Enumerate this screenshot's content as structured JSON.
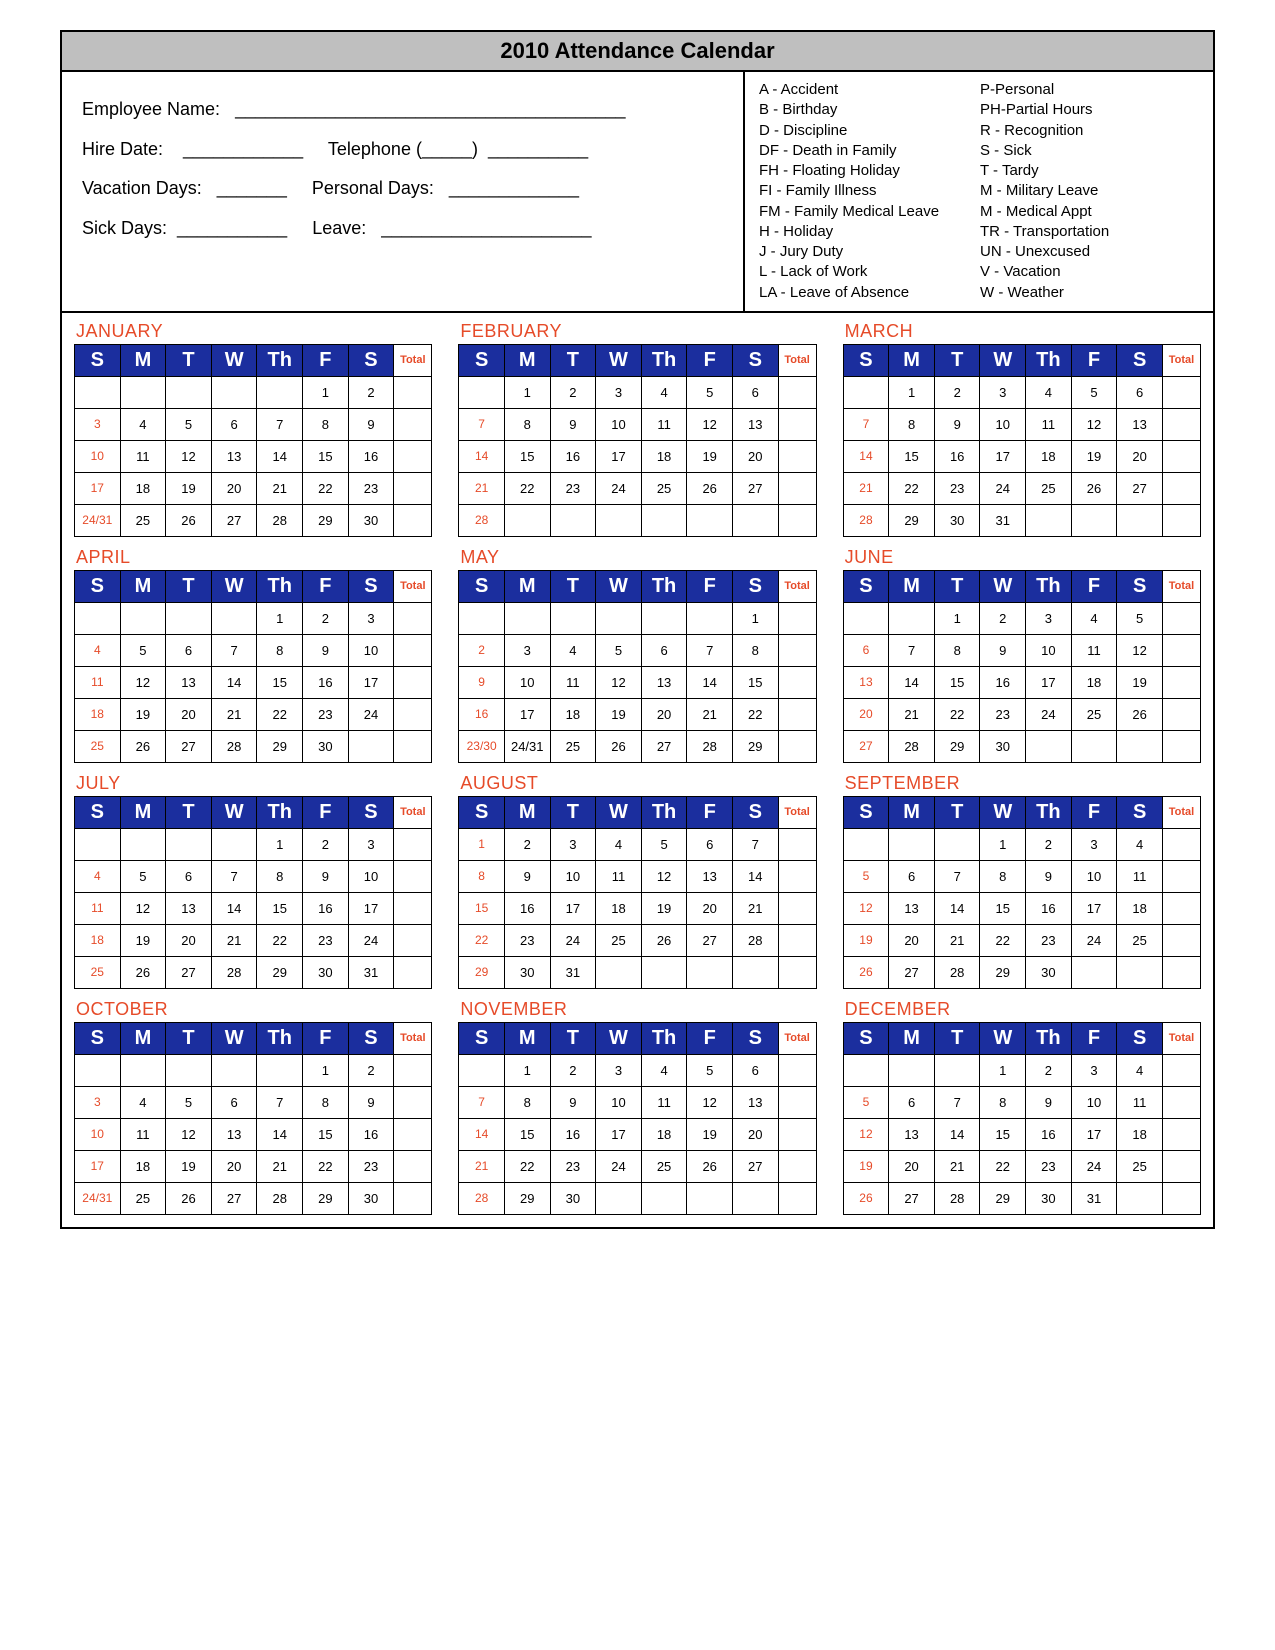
{
  "title": "2010 Attendance Calendar",
  "employee_info": {
    "name_label": "Employee Name:",
    "name_line": "_______________________________________",
    "hire_label": "Hire Date:",
    "hire_line": "____________",
    "tel_label": "Telephone (_____)",
    "tel_line": "__________",
    "vac_label": "Vacation Days:",
    "vac_line": "_______",
    "pers_label": "Personal Days:",
    "pers_line": "_____________",
    "sick_label": "Sick Days:",
    "sick_line": "___________",
    "leave_label": "Leave:",
    "leave_line": "_____________________"
  },
  "legend": {
    "col1": [
      "A - Accident",
      "B -  Birthday",
      "D - Discipline",
      "DF - Death in Family",
      "FH - Floating Holiday",
      "FI - Family Illness",
      "FM - Family Medical Leave",
      "H - Holiday",
      "J - Jury Duty",
      "L - Lack of Work",
      "LA - Leave of Absence"
    ],
    "col2": [
      "P-Personal",
      "PH-Partial Hours",
      "R - Recognition",
      "S - Sick",
      "T - Tardy",
      "M - Military Leave",
      "M - Medical Appt",
      "TR - Transportation",
      "UN - Unexcused",
      "V - Vacation",
      "W - Weather"
    ]
  },
  "day_headers": [
    "S",
    "M",
    "T",
    "W",
    "Th",
    "F",
    "S"
  ],
  "total_header": "Total",
  "colors": {
    "header_bg": "#1b2e9e",
    "header_fg": "#ffffff",
    "accent": "#e64b29",
    "title_bg": "#bfbfbf",
    "border": "#000000"
  },
  "months": [
    {
      "name": "JANUARY",
      "weeks": [
        [
          "",
          "",
          "",
          "",
          "",
          "1",
          "2"
        ],
        [
          "3",
          "4",
          "5",
          "6",
          "7",
          "8",
          "9"
        ],
        [
          "10",
          "11",
          "12",
          "13",
          "14",
          "15",
          "16"
        ],
        [
          "17",
          "18",
          "19",
          "20",
          "21",
          "22",
          "23"
        ],
        [
          "24/31",
          "25",
          "26",
          "27",
          "28",
          "29",
          "30"
        ]
      ]
    },
    {
      "name": "FEBRUARY",
      "weeks": [
        [
          "",
          "1",
          "2",
          "3",
          "4",
          "5",
          "6"
        ],
        [
          "7",
          "8",
          "9",
          "10",
          "11",
          "12",
          "13"
        ],
        [
          "14",
          "15",
          "16",
          "17",
          "18",
          "19",
          "20"
        ],
        [
          "21",
          "22",
          "23",
          "24",
          "25",
          "26",
          "27"
        ],
        [
          "28",
          "",
          "",
          "",
          "",
          "",
          ""
        ]
      ]
    },
    {
      "name": "MARCH",
      "weeks": [
        [
          "",
          "1",
          "2",
          "3",
          "4",
          "5",
          "6"
        ],
        [
          "7",
          "8",
          "9",
          "10",
          "11",
          "12",
          "13"
        ],
        [
          "14",
          "15",
          "16",
          "17",
          "18",
          "19",
          "20"
        ],
        [
          "21",
          "22",
          "23",
          "24",
          "25",
          "26",
          "27"
        ],
        [
          "28",
          "29",
          "30",
          "31",
          "",
          "",
          ""
        ]
      ]
    },
    {
      "name": "APRIL",
      "weeks": [
        [
          "",
          "",
          "",
          "",
          "1",
          "2",
          "3"
        ],
        [
          "4",
          "5",
          "6",
          "7",
          "8",
          "9",
          "10"
        ],
        [
          "11",
          "12",
          "13",
          "14",
          "15",
          "16",
          "17"
        ],
        [
          "18",
          "19",
          "20",
          "21",
          "22",
          "23",
          "24"
        ],
        [
          "25",
          "26",
          "27",
          "28",
          "29",
          "30",
          ""
        ]
      ]
    },
    {
      "name": "MAY",
      "weeks": [
        [
          "",
          "",
          "",
          "",
          "",
          "",
          "1"
        ],
        [
          "2",
          "3",
          "4",
          "5",
          "6",
          "7",
          "8"
        ],
        [
          "9",
          "10",
          "11",
          "12",
          "13",
          "14",
          "15"
        ],
        [
          "16",
          "17",
          "18",
          "19",
          "20",
          "21",
          "22"
        ],
        [
          "23/30",
          "24/31",
          "25",
          "26",
          "27",
          "28",
          "29"
        ]
      ]
    },
    {
      "name": "JUNE",
      "weeks": [
        [
          "",
          "",
          "1",
          "2",
          "3",
          "4",
          "5"
        ],
        [
          "6",
          "7",
          "8",
          "9",
          "10",
          "11",
          "12"
        ],
        [
          "13",
          "14",
          "15",
          "16",
          "17",
          "18",
          "19"
        ],
        [
          "20",
          "21",
          "22",
          "23",
          "24",
          "25",
          "26"
        ],
        [
          "27",
          "28",
          "29",
          "30",
          "",
          "",
          ""
        ]
      ]
    },
    {
      "name": "JULY",
      "weeks": [
        [
          "",
          "",
          "",
          "",
          "1",
          "2",
          "3"
        ],
        [
          "4",
          "5",
          "6",
          "7",
          "8",
          "9",
          "10"
        ],
        [
          "11",
          "12",
          "13",
          "14",
          "15",
          "16",
          "17"
        ],
        [
          "18",
          "19",
          "20",
          "21",
          "22",
          "23",
          "24"
        ],
        [
          "25",
          "26",
          "27",
          "28",
          "29",
          "30",
          "31"
        ]
      ]
    },
    {
      "name": "AUGUST",
      "weeks": [
        [
          "1",
          "2",
          "3",
          "4",
          "5",
          "6",
          "7"
        ],
        [
          "8",
          "9",
          "10",
          "11",
          "12",
          "13",
          "14"
        ],
        [
          "15",
          "16",
          "17",
          "18",
          "19",
          "20",
          "21"
        ],
        [
          "22",
          "23",
          "24",
          "25",
          "26",
          "27",
          "28"
        ],
        [
          "29",
          "30",
          "31",
          "",
          "",
          "",
          ""
        ]
      ]
    },
    {
      "name": "SEPTEMBER",
      "weeks": [
        [
          "",
          "",
          "",
          "1",
          "2",
          "3",
          "4"
        ],
        [
          "5",
          "6",
          "7",
          "8",
          "9",
          "10",
          "11"
        ],
        [
          "12",
          "13",
          "14",
          "15",
          "16",
          "17",
          "18"
        ],
        [
          "19",
          "20",
          "21",
          "22",
          "23",
          "24",
          "25"
        ],
        [
          "26",
          "27",
          "28",
          "29",
          "30",
          "",
          ""
        ]
      ]
    },
    {
      "name": "OCTOBER",
      "weeks": [
        [
          "",
          "",
          "",
          "",
          "",
          "1",
          "2"
        ],
        [
          "3",
          "4",
          "5",
          "6",
          "7",
          "8",
          "9"
        ],
        [
          "10",
          "11",
          "12",
          "13",
          "14",
          "15",
          "16"
        ],
        [
          "17",
          "18",
          "19",
          "20",
          "21",
          "22",
          "23"
        ],
        [
          "24/31",
          "25",
          "26",
          "27",
          "28",
          "29",
          "30"
        ]
      ]
    },
    {
      "name": "NOVEMBER",
      "weeks": [
        [
          "",
          "1",
          "2",
          "3",
          "4",
          "5",
          "6"
        ],
        [
          "7",
          "8",
          "9",
          "10",
          "11",
          "12",
          "13"
        ],
        [
          "14",
          "15",
          "16",
          "17",
          "18",
          "19",
          "20"
        ],
        [
          "21",
          "22",
          "23",
          "24",
          "25",
          "26",
          "27"
        ],
        [
          "28",
          "29",
          "30",
          "",
          "",
          "",
          ""
        ]
      ]
    },
    {
      "name": "DECEMBER",
      "weeks": [
        [
          "",
          "",
          "",
          "1",
          "2",
          "3",
          "4"
        ],
        [
          "5",
          "6",
          "7",
          "8",
          "9",
          "10",
          "11"
        ],
        [
          "12",
          "13",
          "14",
          "15",
          "16",
          "17",
          "18"
        ],
        [
          "19",
          "20",
          "21",
          "22",
          "23",
          "24",
          "25"
        ],
        [
          "26",
          "27",
          "28",
          "29",
          "30",
          "31",
          ""
        ]
      ]
    }
  ]
}
